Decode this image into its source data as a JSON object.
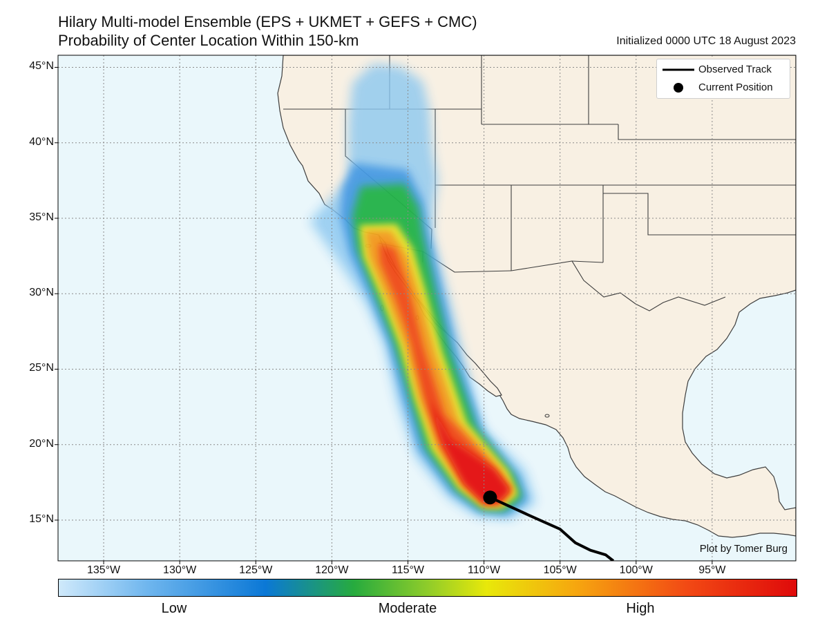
{
  "title_line1": "Hilary Multi-model Ensemble (EPS + UKMET + GEFS + CMC)",
  "title_line2": "Probability of Center Location Within 150-km",
  "initialized": "Initialized 0000 UTC 18 August 2023",
  "credit": "Plot by Tomer Burg",
  "map": {
    "lon_range": [
      -138,
      -89.5
    ],
    "lat_range": [
      12.3,
      45.8
    ],
    "lat_ticks": [
      "45°N",
      "40°N",
      "35°N",
      "30°N",
      "25°N",
      "20°N",
      "15°N"
    ],
    "lon_ticks": [
      "135°W",
      "130°W",
      "125°W",
      "120°W",
      "115°W",
      "110°W",
      "105°W",
      "100°W",
      "95°W"
    ],
    "current_position": {
      "lon": -109.6,
      "lat": 16.5
    },
    "observed_track": [
      {
        "lon": -109.6,
        "lat": 16.5
      },
      {
        "lon": -107.0,
        "lat": 15.3
      },
      {
        "lon": -105.0,
        "lat": 14.4
      },
      {
        "lon": -104.0,
        "lat": 13.5
      },
      {
        "lon": -103.0,
        "lat": 13.0
      },
      {
        "lon": -102.0,
        "lat": 12.7
      },
      {
        "lon": -101.5,
        "lat": 12.3
      }
    ],
    "colors": {
      "ocean": "#eaf7fb",
      "land": "#f8f0e3",
      "border": "#3d3d3d",
      "grid": "#8a8a8a"
    }
  },
  "legend": {
    "track_label": "Observed Track",
    "position_label": "Current Position"
  },
  "colorbar": {
    "labels": [
      "Low",
      "Moderate",
      "High"
    ]
  }
}
